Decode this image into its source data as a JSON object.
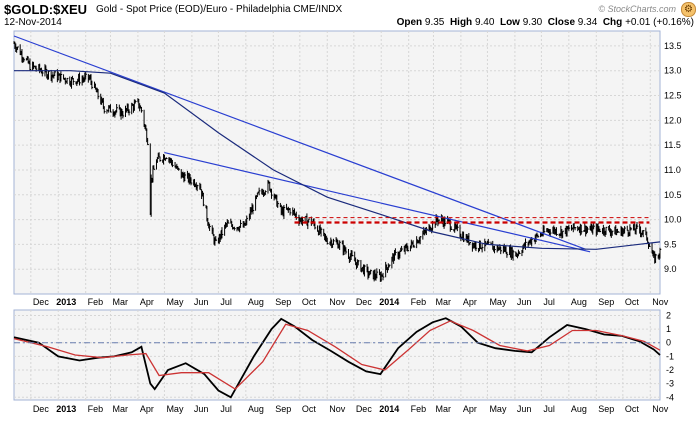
{
  "header": {
    "symbol": "$GOLD:$XEU",
    "description": "Gold - Spot Price (EOD)/Euro - Philadelphia CME/INDX",
    "date": "12-Nov-2014",
    "open_label": "Open",
    "open": "9.35",
    "high_label": "High",
    "high": "9.40",
    "low_label": "Low",
    "low": "9.30",
    "close_label": "Close",
    "close": "9.34",
    "chg_label": "Chg",
    "chg": "+0.01 (+0.16%)",
    "copyright": "© StockCharts.com",
    "settings_icon": "gear-icon"
  },
  "colors": {
    "panel_bg": "#f4f4f4",
    "frame": "#a3b3d6",
    "price": "#000000",
    "trendline": "#2a3fd1",
    "moving_average": "#1a2a7c",
    "resistance_line": "#cc0000",
    "macd": "#000000",
    "signal": "#cc3333",
    "zero_line": "#6a7fb0"
  },
  "chart_data": [
    {
      "type": "line",
      "panel": "price",
      "x_tick_labels": [
        "Dec",
        "2013",
        "Feb",
        "Mar",
        "Apr",
        "May",
        "Jun",
        "Jul",
        "Aug",
        "Sep",
        "Oct",
        "Nov",
        "Dec",
        "2014",
        "Feb",
        "Mar",
        "Apr",
        "May",
        "Jun",
        "Jul",
        "Aug",
        "Sep",
        "Oct",
        "Nov"
      ],
      "ylim": [
        8.5,
        13.8
      ],
      "y_ticks": [
        "9.0",
        "9.5",
        "10.0",
        "10.5",
        "11.0",
        "11.5",
        "12.0",
        "12.5",
        "13.0",
        "13.5"
      ],
      "grid": true,
      "series": [
        {
          "role": "price",
          "style": "ohlc bars",
          "x": [
            "2012-11-12",
            "2012-11-30",
            "2012-12-20",
            "2013-01-15",
            "2013-02-05",
            "2013-02-22",
            "2013-03-15",
            "2013-04-01",
            "2013-04-05",
            "2013-04-12",
            "2013-04-15",
            "2013-04-16",
            "2013-04-22",
            "2013-05-03",
            "2013-05-20",
            "2013-06-10",
            "2013-06-20",
            "2013-06-28",
            "2013-07-10",
            "2013-07-30",
            "2013-08-15",
            "2013-08-27",
            "2013-09-10",
            "2013-09-20",
            "2013-10-01",
            "2013-10-15",
            "2013-10-30",
            "2013-11-15",
            "2013-12-05",
            "2013-12-18",
            "2013-12-31",
            "2014-01-15",
            "2014-02-05",
            "2014-02-20",
            "2014-03-05",
            "2014-03-17",
            "2014-04-01",
            "2014-04-15",
            "2014-05-05",
            "2014-05-20",
            "2014-06-02",
            "2014-06-20",
            "2014-07-10",
            "2014-07-25",
            "2014-08-10",
            "2014-08-25",
            "2014-09-10",
            "2014-09-25",
            "2014-10-10",
            "2014-10-20",
            "2014-10-28",
            "2014-11-05",
            "2014-11-12"
          ],
          "values": [
            13.55,
            13.1,
            12.95,
            12.8,
            12.85,
            12.25,
            12.15,
            12.35,
            12.2,
            11.6,
            10.2,
            10.8,
            11.2,
            11.3,
            10.9,
            10.7,
            9.9,
            9.5,
            9.9,
            9.85,
            10.5,
            10.7,
            10.15,
            10.2,
            10.0,
            9.95,
            9.6,
            9.5,
            9.1,
            8.9,
            8.85,
            9.25,
            9.5,
            9.75,
            10.0,
            9.95,
            9.7,
            9.5,
            9.45,
            9.4,
            9.3,
            9.6,
            9.8,
            9.75,
            9.85,
            9.8,
            9.8,
            9.75,
            9.8,
            9.8,
            9.65,
            9.2,
            9.34
          ]
        },
        {
          "role": "trendline",
          "x": [
            "2012-11-12",
            "2014-08-20"
          ],
          "values": [
            13.7,
            9.4
          ]
        },
        {
          "role": "trendline",
          "x": [
            "2013-05-01",
            "2014-08-25"
          ],
          "values": [
            11.35,
            9.35
          ]
        },
        {
          "role": "moving_average",
          "x": [
            "2012-11-12",
            "2013-01-15",
            "2013-03-01",
            "2013-05-01",
            "2013-07-01",
            "2013-09-01",
            "2013-11-01",
            "2014-01-01",
            "2014-03-01",
            "2014-05-01",
            "2014-07-01",
            "2014-09-01",
            "2014-11-12"
          ],
          "values": [
            13.0,
            13.0,
            12.95,
            12.55,
            11.75,
            11.0,
            10.45,
            10.1,
            9.75,
            9.5,
            9.42,
            9.4,
            9.55
          ]
        },
        {
          "role": "resistance",
          "style": "dashed",
          "x": [
            "2013-09-25",
            "2014-10-31"
          ],
          "values": [
            10.04,
            10.04
          ]
        },
        {
          "role": "resistance",
          "style": "dashed thick",
          "x": [
            "2013-09-25",
            "2014-10-31"
          ],
          "values": [
            9.94,
            9.94
          ]
        }
      ]
    },
    {
      "type": "line",
      "panel": "oscillator",
      "ylim": [
        -4.2,
        2.4
      ],
      "y_ticks": [
        "-4",
        "-3",
        "-2",
        "-1",
        "0",
        "1",
        "2"
      ],
      "grid": true,
      "series": [
        {
          "role": "macd",
          "x": [
            "2012-11-12",
            "2012-12-10",
            "2013-01-01",
            "2013-01-25",
            "2013-02-15",
            "2013-03-05",
            "2013-03-25",
            "2013-04-05",
            "2013-04-15",
            "2013-04-20",
            "2013-05-05",
            "2013-05-25",
            "2013-06-15",
            "2013-07-01",
            "2013-07-15",
            "2013-08-10",
            "2013-08-30",
            "2013-09-10",
            "2013-09-25",
            "2013-10-15",
            "2013-11-05",
            "2013-11-25",
            "2013-12-15",
            "2013-12-31",
            "2014-01-20",
            "2014-02-10",
            "2014-02-28",
            "2014-03-15",
            "2014-04-01",
            "2014-04-20",
            "2014-05-10",
            "2014-06-01",
            "2014-06-20",
            "2014-07-10",
            "2014-07-30",
            "2014-08-20",
            "2014-09-10",
            "2014-09-30",
            "2014-10-20",
            "2014-11-05",
            "2014-11-12"
          ],
          "values": [
            0.4,
            0.0,
            -1.0,
            -1.3,
            -1.1,
            -1.0,
            -0.7,
            -0.3,
            -3.0,
            -3.4,
            -2.0,
            -1.5,
            -2.3,
            -3.5,
            -4.0,
            -1.0,
            1.0,
            1.75,
            1.2,
            0.2,
            -0.6,
            -1.4,
            -2.1,
            -2.3,
            -0.4,
            0.8,
            1.5,
            1.8,
            1.2,
            0.0,
            -0.4,
            -0.6,
            -0.7,
            0.4,
            1.3,
            1.0,
            0.6,
            0.5,
            0.1,
            -0.5,
            -0.9
          ]
        },
        {
          "role": "signal",
          "x": [
            "2012-11-12",
            "2012-12-20",
            "2013-01-20",
            "2013-02-20",
            "2013-03-20",
            "2013-04-10",
            "2013-04-25",
            "2013-05-20",
            "2013-06-20",
            "2013-07-20",
            "2013-08-20",
            "2013-09-15",
            "2013-10-10",
            "2013-11-10",
            "2013-12-10",
            "2014-01-05",
            "2014-02-01",
            "2014-02-25",
            "2014-03-20",
            "2014-04-15",
            "2014-05-15",
            "2014-06-15",
            "2014-07-10",
            "2014-08-05",
            "2014-09-01",
            "2014-10-01",
            "2014-10-25",
            "2014-11-12"
          ],
          "values": [
            0.3,
            -0.3,
            -0.9,
            -1.1,
            -0.9,
            -0.8,
            -2.4,
            -2.2,
            -2.2,
            -3.4,
            -1.4,
            1.35,
            0.9,
            -0.3,
            -1.6,
            -2.0,
            -0.5,
            0.9,
            1.6,
            0.9,
            -0.2,
            -0.6,
            -0.2,
            0.9,
            0.9,
            0.5,
            0.1,
            -0.55
          ]
        },
        {
          "role": "zero_line",
          "style": "dash-dot",
          "x": [
            "2012-11-12",
            "2014-11-12"
          ],
          "values": [
            0,
            0
          ]
        }
      ]
    }
  ]
}
